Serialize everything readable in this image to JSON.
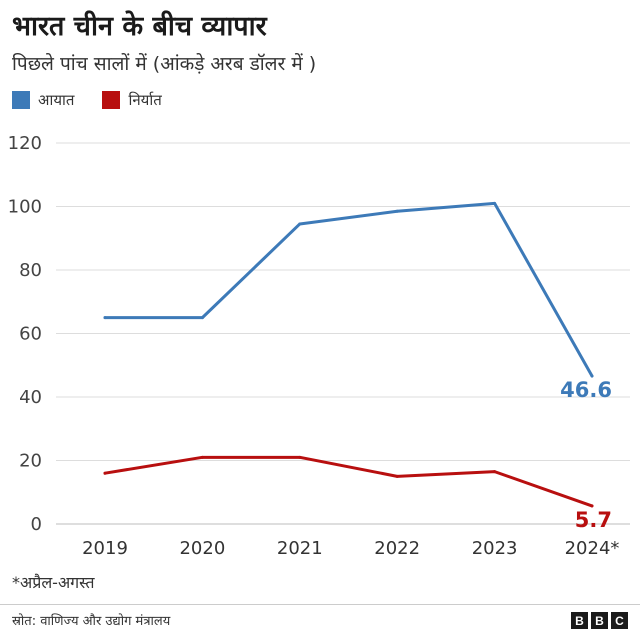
{
  "chart_data": {
    "type": "line",
    "title": "भारत चीन के बीच व्यापार",
    "subtitle": "पिछले पांच सालों में (आंकड़े अरब डॉलर में )",
    "categories": [
      "2019",
      "2020",
      "2021",
      "2022",
      "2023",
      "2024*"
    ],
    "series": [
      {
        "name": "आयात",
        "color": "#3d7ab8",
        "values": [
          65,
          65,
          94.5,
          98.5,
          101,
          46.6
        ],
        "end_label": "46.6"
      },
      {
        "name": "निर्यात",
        "color": "#b80f0f",
        "values": [
          16,
          21,
          21,
          15,
          16.5,
          5.7
        ],
        "end_label": "5.7"
      }
    ],
    "ylim": [
      0,
      120
    ],
    "yticks": [
      0,
      20,
      40,
      60,
      80,
      100,
      120
    ],
    "ytick_labels": [
      "0",
      "20",
      "40",
      "60",
      "80",
      "100",
      "120"
    ],
    "grid": true,
    "legend": "top-left",
    "footnote": "*अप्रैल-अगस्त"
  },
  "footer": {
    "source": "स्रोत: वाणिज्य और उद्योग मंत्रालय",
    "logo_letters": [
      "B",
      "B",
      "C"
    ]
  }
}
